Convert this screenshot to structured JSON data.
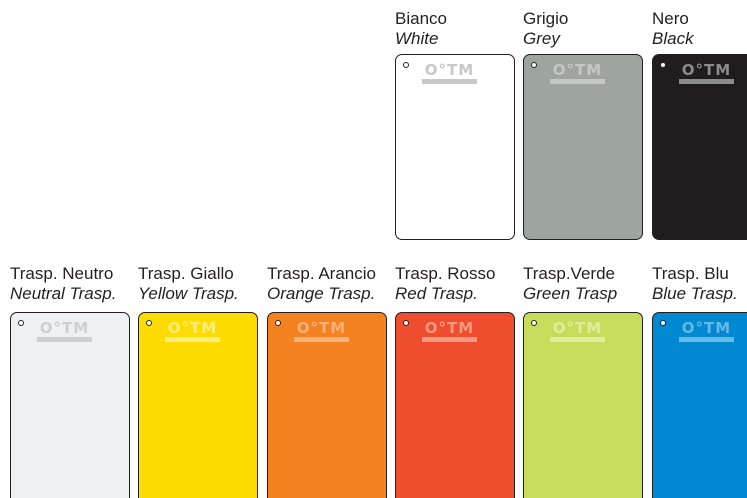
{
  "logo_text": "O°TM",
  "row1": [
    {
      "name_it": "Bianco",
      "name_en": "White",
      "color": "#ffffff",
      "logo_color": "#c8c8c8"
    },
    {
      "name_it": "Grigio",
      "name_en": "Grey",
      "color": "#9ea49e",
      "logo_color": "#c4c8c4"
    },
    {
      "name_it": "Nero",
      "name_en": "Black",
      "color": "#1f1d1d",
      "logo_color": "#8c8c8c"
    }
  ],
  "row2": [
    {
      "name_it": "Trasp. Neutro",
      "name_en": "Neutral Trasp.",
      "color": "#eef0f1",
      "logo_color": "#cdd0d2"
    },
    {
      "name_it": "Trasp. Giallo",
      "name_en": "Yellow Trasp.",
      "color": "#ffdc00",
      "logo_color": "#ffed80"
    },
    {
      "name_it": "Trasp. Arancio",
      "name_en": "Orange Trasp.",
      "color": "#f58220",
      "logo_color": "#f9b27a"
    },
    {
      "name_it": "Trasp. Rosso",
      "name_en": "Red Trasp.",
      "color": "#ee4e2e",
      "logo_color": "#f59a82"
    },
    {
      "name_it": "Trasp.Verde",
      "name_en": "Green Trasp",
      "color": "#c8dc5c",
      "logo_color": "#e2ec9e"
    },
    {
      "name_it": "Trasp. Blu",
      "name_en": "Blue Trasp.",
      "color": "#0088d0",
      "logo_color": "#66b8e6"
    }
  ]
}
